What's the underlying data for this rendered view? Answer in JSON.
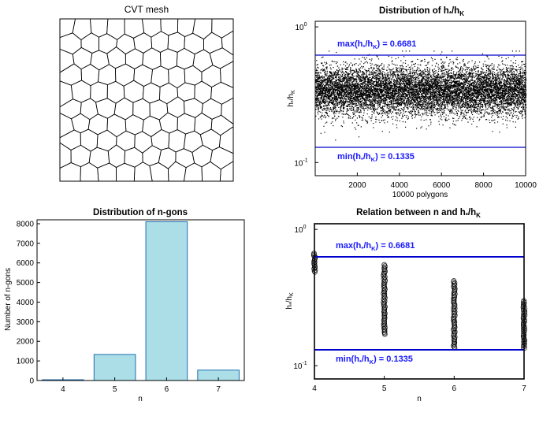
{
  "colors": {
    "axis": "#000000",
    "threshold_line": "#0000cc",
    "annotation": "#1a1aff",
    "bar_fill": "#abdee6",
    "bar_edge": "#1f6fb4",
    "mesh_edge": "#000000",
    "marker": "#000000"
  },
  "chart_data": [
    {
      "type": "mesh",
      "title": "CVT mesh",
      "polygon_count": 100
    },
    {
      "type": "scatter",
      "title_main": "Distribution of h",
      "title_sub1": "*",
      "title_mid": "/h",
      "title_sub2": "K",
      "xlabel": "10000 polygons",
      "ylabel_main": "h",
      "ylabel_sub1": "*",
      "ylabel_mid": "/h",
      "ylabel_sub2": "K",
      "xlim": [
        0,
        10000
      ],
      "ylim": [
        0.08,
        1.1
      ],
      "yscale": "log",
      "xticks": [
        "2000",
        "4000",
        "6000",
        "8000",
        "10000"
      ],
      "yticks": [
        "10",
        "10"
      ],
      "ytick_exponents": [
        "-1",
        "0"
      ],
      "point_count": 10000,
      "y_bulk_range": [
        0.25,
        0.45
      ],
      "y_spread_range": [
        0.1335,
        0.6681
      ],
      "max_value": 0.6681,
      "min_value": 0.1335,
      "max_label": {
        "pre": "max(h",
        "sub1": "*",
        "mid": "/h",
        "sub2": "K",
        "post": ") = 0.6681"
      },
      "min_label": {
        "pre": "min(h",
        "sub1": "*",
        "mid": "/h",
        "sub2": "K",
        "post": ") = 0.1335"
      }
    },
    {
      "type": "bar",
      "title": "Distribution of n-gons",
      "xlabel": "n",
      "ylabel": "Number of n-gons",
      "categories": [
        "4",
        "5",
        "6",
        "7"
      ],
      "values": [
        40,
        1330,
        8100,
        530
      ],
      "ylim": [
        0,
        8200
      ],
      "yticks": [
        "0",
        "1000",
        "2000",
        "3000",
        "4000",
        "5000",
        "6000",
        "7000",
        "8000"
      ]
    },
    {
      "type": "scatter",
      "title_main": "Relation between n and h",
      "title_sub1": "*",
      "title_mid": "/h",
      "title_sub2": "K",
      "xlabel": "n",
      "ylabel_main": "h",
      "ylabel_sub1": "*",
      "ylabel_mid": "/h",
      "ylabel_sub2": "K",
      "xlim": [
        4,
        7
      ],
      "ylim": [
        0.08,
        1.1
      ],
      "yscale": "log",
      "xticks": [
        "4",
        "5",
        "6",
        "7"
      ],
      "yticks": [
        "10",
        "10"
      ],
      "ytick_exponents": [
        "-1",
        "0"
      ],
      "series": [
        {
          "x": 4,
          "y_range": [
            0.48,
            0.6681
          ]
        },
        {
          "x": 5,
          "y_range": [
            0.17,
            0.55
          ]
        },
        {
          "x": 6,
          "y_range": [
            0.1335,
            0.42
          ]
        },
        {
          "x": 7,
          "y_range": [
            0.1335,
            0.3
          ]
        }
      ],
      "max_value": 0.6681,
      "min_value": 0.1335,
      "max_label": {
        "pre": "max(h",
        "sub1": "*",
        "mid": "/h",
        "sub2": "K",
        "post": ") = 0.6681"
      },
      "min_label": {
        "pre": "min(h",
        "sub1": "*",
        "mid": "/h",
        "sub2": "K",
        "post": ") = 0.1335"
      }
    }
  ]
}
